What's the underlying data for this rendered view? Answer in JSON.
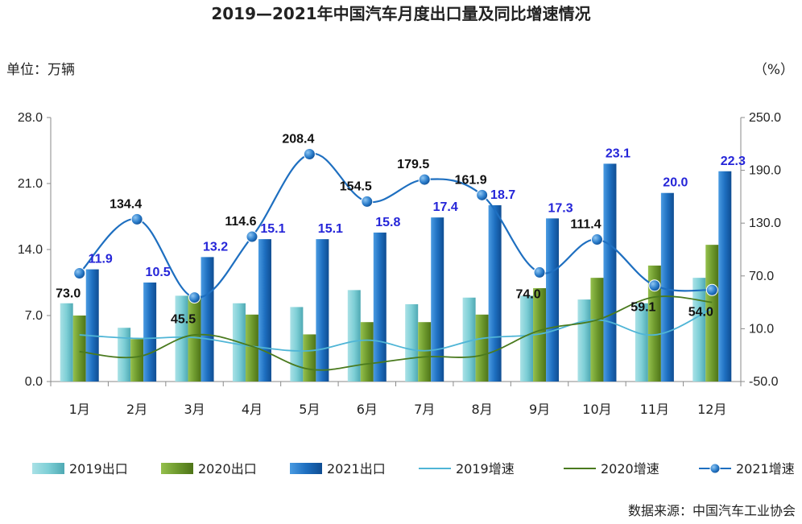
{
  "chart_data": {
    "type": "bar",
    "title": "2019—2021年中国汽车月度出口量及同比增速情况",
    "ylabel": "单位：万辆",
    "y2label": "（%）",
    "source": "数据来源：中国汽车工业协会",
    "categories": [
      "1月",
      "2月",
      "3月",
      "4月",
      "5月",
      "6月",
      "7月",
      "8月",
      "9月",
      "10月",
      "11月",
      "12月"
    ],
    "ylim": [
      0,
      28
    ],
    "yticks": [
      "0.0",
      "7.0",
      "14.0",
      "21.0",
      "28.0"
    ],
    "y2lim": [
      -50,
      250
    ],
    "y2ticks": [
      "-50.0",
      "10.0",
      "70.0",
      "130.0",
      "190.0",
      "250.0"
    ],
    "bar_series": [
      {
        "name": "2019出口",
        "color": "#7ecfd6",
        "values": [
          8.3,
          5.7,
          9.1,
          8.3,
          7.9,
          9.7,
          8.2,
          8.9,
          9.1,
          8.7,
          8.3,
          11.0
        ]
      },
      {
        "name": "2020出口",
        "color": "#6e9a2e",
        "values": [
          7.0,
          4.5,
          9.1,
          7.1,
          5.0,
          6.3,
          6.3,
          7.1,
          9.9,
          11.0,
          12.3,
          14.5
        ]
      },
      {
        "name": "2021出口",
        "color": "#1e6fc0",
        "values": [
          11.9,
          10.5,
          13.2,
          15.1,
          15.1,
          15.8,
          17.4,
          18.7,
          17.3,
          23.1,
          20.0,
          22.3
        ],
        "labels": [
          "11.9",
          "10.5",
          "13.2",
          "15.1",
          "15.1",
          "15.8",
          "17.4",
          "18.7",
          "17.3",
          "23.1",
          "20.0",
          "22.3"
        ]
      }
    ],
    "line_series": [
      {
        "name": "2019增速",
        "color": "#4fb5d6",
        "values": [
          3,
          -1,
          0,
          -10,
          -15,
          -3,
          -15,
          -1,
          4,
          20,
          3,
          33
        ]
      },
      {
        "name": "2020增速",
        "color": "#4a7a1e",
        "values": [
          -16,
          -22,
          3,
          -10,
          -36,
          -30,
          -22,
          -20,
          8,
          20,
          46,
          40
        ]
      },
      {
        "name": "2021增速",
        "color": "#1e6fc0",
        "values": [
          73.0,
          134.4,
          45.5,
          114.6,
          208.4,
          154.5,
          179.5,
          161.9,
          74.0,
          111.4,
          59.1,
          54.0
        ],
        "labels": [
          "73.0",
          "134.4",
          "45.5",
          "114.6",
          "208.4",
          "154.5",
          "179.5",
          "161.9",
          "74.0",
          "111.4",
          "59.1",
          "54.0"
        ]
      }
    ],
    "grid": false,
    "legend": "bottom"
  }
}
